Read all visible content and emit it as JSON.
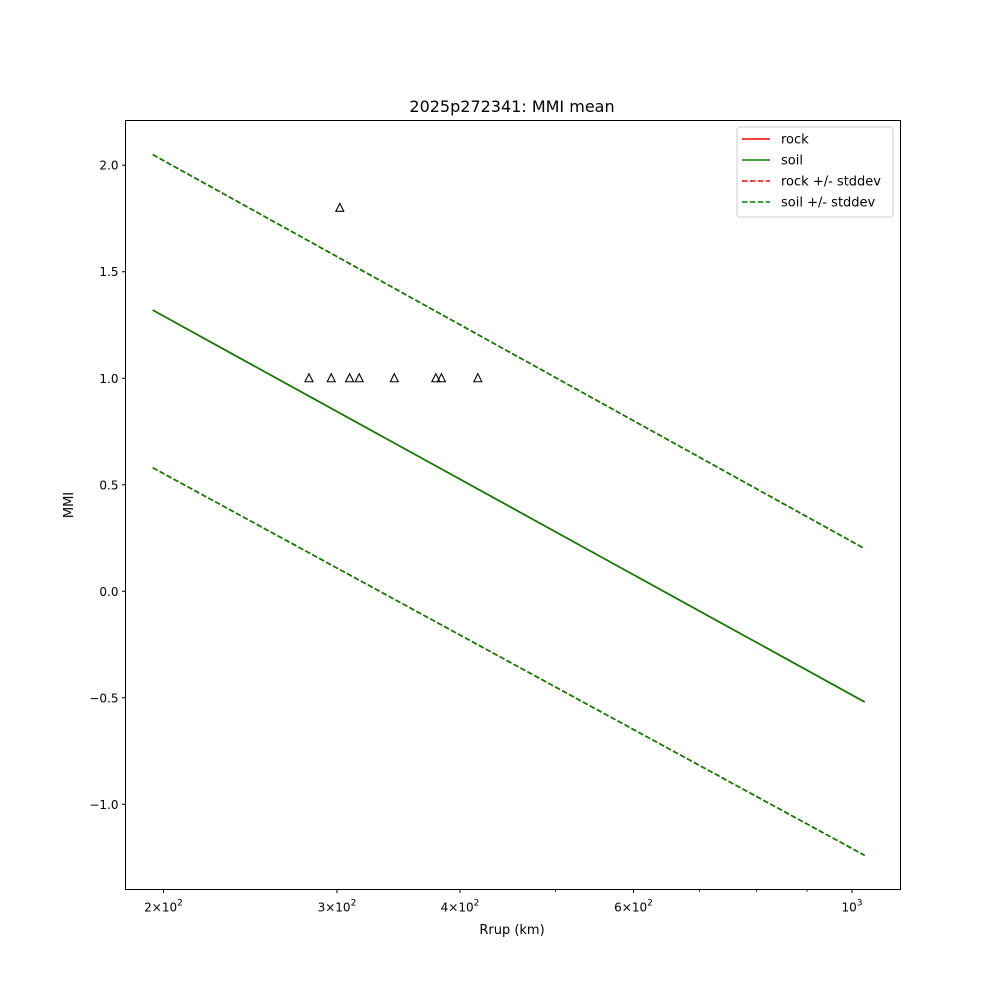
{
  "chart_data": {
    "type": "line",
    "title": "2025p272341: MMI mean",
    "xlabel": "Rrup (km)",
    "ylabel": "MMI",
    "xscale": "log",
    "xlim": [
      183,
      1120
    ],
    "ylim": [
      -1.4,
      2.21
    ],
    "xticks": [
      {
        "value": 200,
        "base": "2",
        "exp": "2"
      },
      {
        "value": 300,
        "base": "3",
        "exp": "2"
      },
      {
        "value": 400,
        "base": "4",
        "exp": "2"
      },
      {
        "value": 600,
        "base": "6",
        "exp": "2"
      },
      {
        "value": 1000,
        "base": "",
        "exp": "3"
      }
    ],
    "xminor_ticks": [
      500,
      700,
      800,
      900
    ],
    "yticks": [
      {
        "value": -1.0,
        "label": "−1.0"
      },
      {
        "value": -0.5,
        "label": "−0.5"
      },
      {
        "value": 0.0,
        "label": "0.0"
      },
      {
        "value": 0.5,
        "label": "0.5"
      },
      {
        "value": 1.0,
        "label": "1.0"
      },
      {
        "value": 1.5,
        "label": "1.5"
      },
      {
        "value": 2.0,
        "label": "2.0"
      }
    ],
    "legend_position": "upper right",
    "series": [
      {
        "name": "rock",
        "color": "#ff0000",
        "dash": "solid",
        "x": [
          195,
          1030
        ],
        "y": [
          1.32,
          -0.52
        ]
      },
      {
        "name": "soil",
        "color": "#008000",
        "dash": "solid",
        "x": [
          195,
          1030
        ],
        "y": [
          1.32,
          -0.52
        ]
      },
      {
        "name": "rock +/- stddev",
        "color": "#ff0000",
        "dash": "dashed",
        "x": [
          195,
          1030
        ],
        "y": [
          2.05,
          0.2
        ]
      },
      {
        "name": "rock +/- stddev",
        "color": "#ff0000",
        "dash": "dashed",
        "x": [
          195,
          1030
        ],
        "y": [
          0.58,
          -1.24
        ]
      },
      {
        "name": "soil +/- stddev",
        "color": "#008000",
        "dash": "dashed",
        "x": [
          195,
          1030
        ],
        "y": [
          2.05,
          0.2
        ]
      },
      {
        "name": "soil +/- stddev",
        "color": "#008000",
        "dash": "dashed",
        "x": [
          195,
          1030
        ],
        "y": [
          0.58,
          -1.24
        ]
      }
    ],
    "observations": {
      "marker": "triangle",
      "points": [
        {
          "x": 281,
          "y": 1.0
        },
        {
          "x": 296,
          "y": 1.0
        },
        {
          "x": 302,
          "y": 1.8
        },
        {
          "x": 309,
          "y": 1.0
        },
        {
          "x": 316,
          "y": 1.0
        },
        {
          "x": 343,
          "y": 1.0
        },
        {
          "x": 378,
          "y": 1.0
        },
        {
          "x": 383,
          "y": 1.0
        },
        {
          "x": 417,
          "y": 1.0
        }
      ]
    }
  }
}
